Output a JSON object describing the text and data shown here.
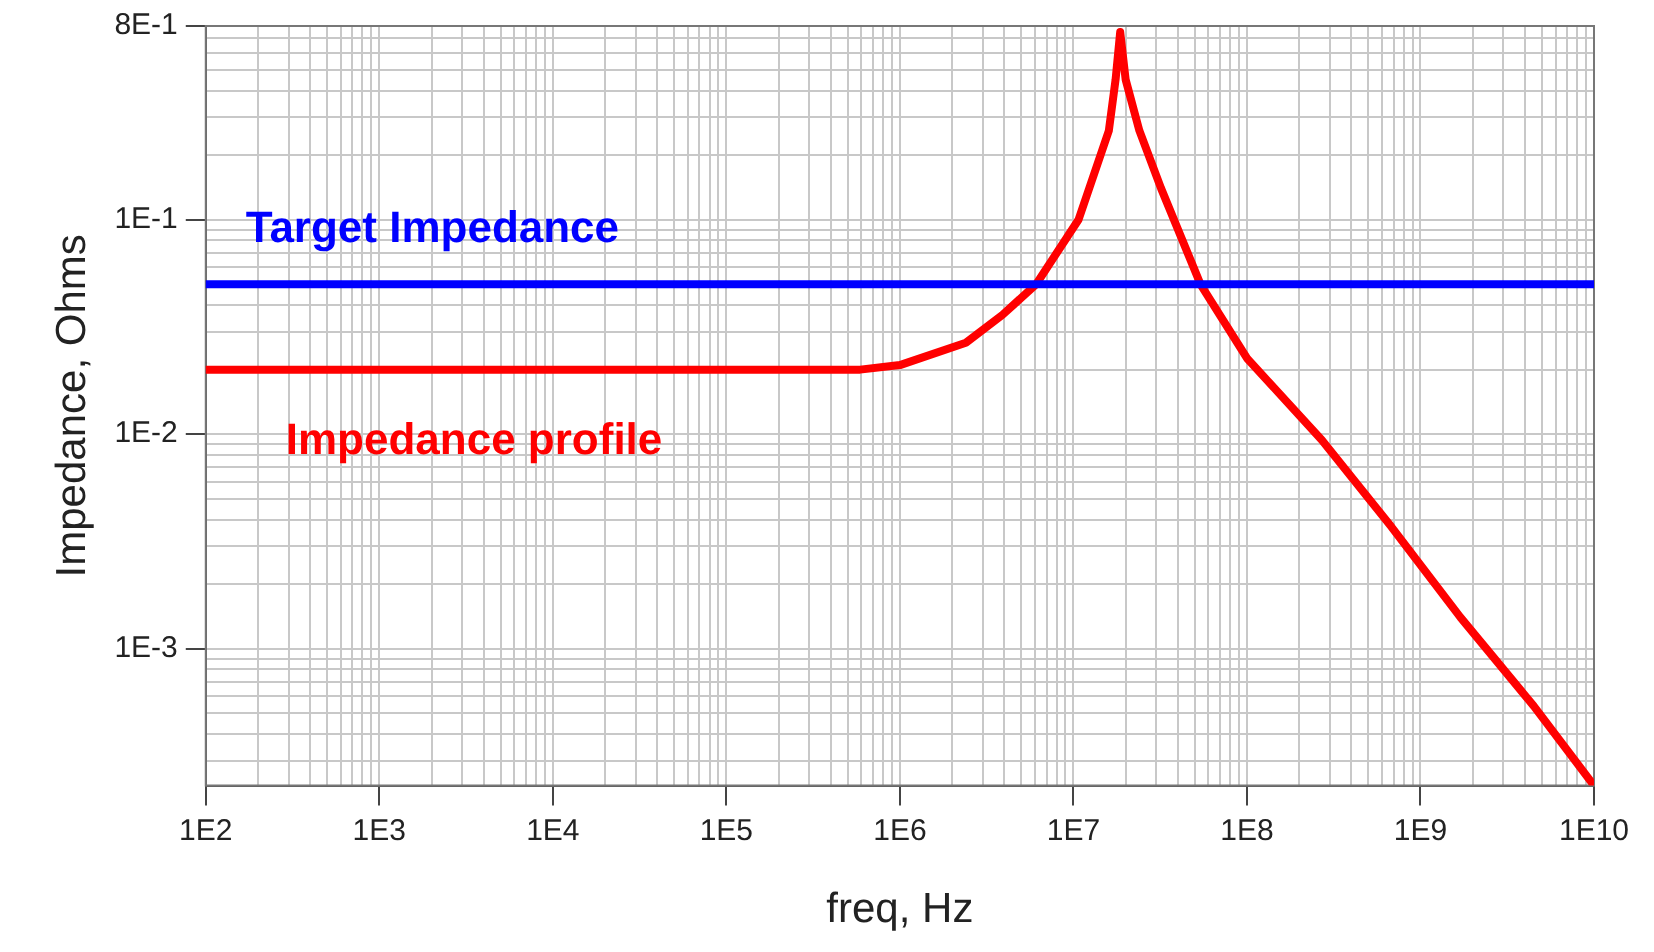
{
  "chart_data": {
    "type": "line",
    "xlabel": "freq, Hz",
    "ylabel": "Impedance, Ohms",
    "log": "xy",
    "grid": true,
    "legend": false,
    "marker": "none",
    "line_style": "solid",
    "xlim": [
      100,
      10000000000
    ],
    "ylim": [
      0.00023,
      0.8
    ],
    "xticks": [
      {
        "value": 100,
        "label": "1E2"
      },
      {
        "value": 200,
        "label": null
      },
      {
        "value": 300,
        "label": null
      },
      {
        "value": 400,
        "label": null
      },
      {
        "value": 500,
        "label": null
      },
      {
        "value": 600,
        "label": null
      },
      {
        "value": 700,
        "label": null
      },
      {
        "value": 800,
        "label": null
      },
      {
        "value": 900,
        "label": null
      },
      {
        "value": 1000,
        "label": "1E3"
      },
      {
        "value": 2000,
        "label": null
      },
      {
        "value": 3000,
        "label": null
      },
      {
        "value": 4000,
        "label": null
      },
      {
        "value": 5000,
        "label": null
      },
      {
        "value": 6000,
        "label": null
      },
      {
        "value": 7000,
        "label": null
      },
      {
        "value": 8000,
        "label": null
      },
      {
        "value": 9000,
        "label": null
      },
      {
        "value": 10000,
        "label": "1E4"
      },
      {
        "value": 20000,
        "label": null
      },
      {
        "value": 30000,
        "label": null
      },
      {
        "value": 40000,
        "label": null
      },
      {
        "value": 50000,
        "label": null
      },
      {
        "value": 60000,
        "label": null
      },
      {
        "value": 70000,
        "label": null
      },
      {
        "value": 80000,
        "label": null
      },
      {
        "value": 90000,
        "label": null
      },
      {
        "value": 100000,
        "label": "1E5"
      },
      {
        "value": 200000,
        "label": null
      },
      {
        "value": 300000,
        "label": null
      },
      {
        "value": 400000,
        "label": null
      },
      {
        "value": 500000,
        "label": null
      },
      {
        "value": 600000,
        "label": null
      },
      {
        "value": 700000,
        "label": null
      },
      {
        "value": 800000,
        "label": null
      },
      {
        "value": 900000,
        "label": null
      },
      {
        "value": 1000000,
        "label": "1E6"
      },
      {
        "value": 2000000,
        "label": null
      },
      {
        "value": 3000000,
        "label": null
      },
      {
        "value": 4000000,
        "label": null
      },
      {
        "value": 5000000,
        "label": null
      },
      {
        "value": 6000000,
        "label": null
      },
      {
        "value": 7000000,
        "label": null
      },
      {
        "value": 8000000,
        "label": null
      },
      {
        "value": 9000000,
        "label": null
      },
      {
        "value": 10000000,
        "label": "1E7"
      },
      {
        "value": 20000000,
        "label": null
      },
      {
        "value": 30000000,
        "label": null
      },
      {
        "value": 40000000,
        "label": null
      },
      {
        "value": 50000000,
        "label": null
      },
      {
        "value": 60000000,
        "label": null
      },
      {
        "value": 70000000,
        "label": null
      },
      {
        "value": 80000000,
        "label": null
      },
      {
        "value": 90000000,
        "label": null
      },
      {
        "value": 100000000,
        "label": "1E8"
      },
      {
        "value": 200000000,
        "label": null
      },
      {
        "value": 300000000,
        "label": null
      },
      {
        "value": 400000000,
        "label": null
      },
      {
        "value": 500000000,
        "label": null
      },
      {
        "value": 600000000,
        "label": null
      },
      {
        "value": 700000000,
        "label": null
      },
      {
        "value": 800000000,
        "label": null
      },
      {
        "value": 900000000,
        "label": null
      },
      {
        "value": 1000000000,
        "label": "1E9"
      },
      {
        "value": 2000000000,
        "label": null
      },
      {
        "value": 3000000000,
        "label": null
      },
      {
        "value": 4000000000,
        "label": null
      },
      {
        "value": 5000000000,
        "label": null
      },
      {
        "value": 6000000000,
        "label": null
      },
      {
        "value": 7000000000,
        "label": null
      },
      {
        "value": 8000000000,
        "label": null
      },
      {
        "value": 9000000000,
        "label": null
      },
      {
        "value": 10000000000,
        "label": "1E10"
      }
    ],
    "yticks": [
      {
        "value": 0.0003,
        "label": null
      },
      {
        "value": 0.0004,
        "label": null
      },
      {
        "value": 0.0005,
        "label": null
      },
      {
        "value": 0.0006,
        "label": null
      },
      {
        "value": 0.0007,
        "label": null
      },
      {
        "value": 0.0008,
        "label": null
      },
      {
        "value": 0.0009,
        "label": null
      },
      {
        "value": 0.001,
        "label": "1E-3"
      },
      {
        "value": 0.002,
        "label": null
      },
      {
        "value": 0.003,
        "label": null
      },
      {
        "value": 0.004,
        "label": null
      },
      {
        "value": 0.005,
        "label": null
      },
      {
        "value": 0.006,
        "label": null
      },
      {
        "value": 0.007,
        "label": null
      },
      {
        "value": 0.008,
        "label": null
      },
      {
        "value": 0.009,
        "label": null
      },
      {
        "value": 0.01,
        "label": "1E-2"
      },
      {
        "value": 0.02,
        "label": null
      },
      {
        "value": 0.03,
        "label": null
      },
      {
        "value": 0.04,
        "label": null
      },
      {
        "value": 0.05,
        "label": null
      },
      {
        "value": 0.06,
        "label": null
      },
      {
        "value": 0.07,
        "label": null
      },
      {
        "value": 0.08,
        "label": null
      },
      {
        "value": 0.09,
        "label": null
      },
      {
        "value": 0.1,
        "label": "1E-1"
      },
      {
        "value": 0.2,
        "label": null
      },
      {
        "value": 0.3,
        "label": null
      },
      {
        "value": 0.4,
        "label": null
      },
      {
        "value": 0.5,
        "label": null
      },
      {
        "value": 0.6,
        "label": null
      },
      {
        "value": 0.7,
        "label": null
      },
      {
        "value": 0.8,
        "label": "8E-1"
      }
    ],
    "ref_lines": [
      {
        "axis": "y",
        "value": 0.05,
        "label": "Target Impedance",
        "color": "#0000ff",
        "line_style": "solid"
      }
    ],
    "series": [
      {
        "name": "Impedance profile",
        "color": "#ff0000",
        "x": [
          100,
          590000,
          1000000,
          2400000,
          3900000,
          6100000,
          10700000,
          16000000,
          17500000,
          18600000,
          20000000,
          24000000,
          32000000,
          54000000,
          100000000,
          270000000,
          680000000,
          1700000000,
          4500000000,
          10000000000
        ],
        "values": [
          0.02,
          0.02,
          0.021,
          0.0267,
          0.036,
          0.05,
          0.1,
          0.26,
          0.45,
          0.75,
          0.45,
          0.26,
          0.14,
          0.05,
          0.0226,
          0.0094,
          0.0037,
          0.0014,
          0.00054,
          0.00023
        ]
      }
    ]
  }
}
